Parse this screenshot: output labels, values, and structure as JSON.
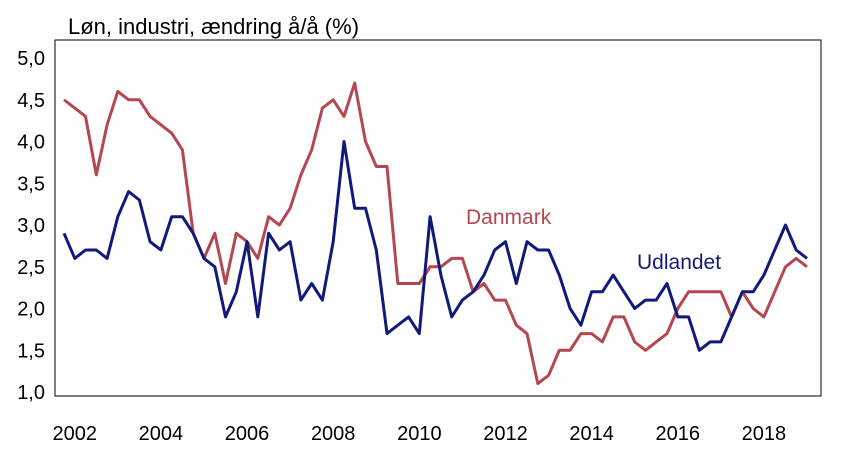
{
  "chart_data": {
    "type": "line",
    "title": "Løn, industri, ændring å/å (%)",
    "xlabel": "",
    "ylabel": "",
    "ylim": [
      1.0,
      5.0
    ],
    "xlim": [
      2001.75,
      2019.0
    ],
    "y_ticks": [
      "1,0",
      "1,5",
      "2,0",
      "2,5",
      "3,0",
      "3,5",
      "4,0",
      "4,5",
      "5,0"
    ],
    "x_ticks": [
      "2002",
      "2004",
      "2006",
      "2008",
      "2010",
      "2012",
      "2014",
      "2016",
      "2018"
    ],
    "grid": false,
    "series": [
      {
        "name": "Danmark",
        "color": "#b5474f",
        "x": [
          2001.75,
          2002.0,
          2002.25,
          2002.5,
          2002.75,
          2003.0,
          2003.25,
          2003.5,
          2003.75,
          2004.0,
          2004.25,
          2004.5,
          2004.75,
          2005.0,
          2005.25,
          2005.5,
          2005.75,
          2006.0,
          2006.25,
          2006.5,
          2006.75,
          2007.0,
          2007.25,
          2007.5,
          2007.75,
          2008.0,
          2008.25,
          2008.5,
          2008.75,
          2009.0,
          2009.25,
          2009.5,
          2009.75,
          2010.0,
          2010.25,
          2010.5,
          2010.75,
          2011.0,
          2011.25,
          2011.5,
          2011.75,
          2012.0,
          2012.25,
          2012.5,
          2012.75,
          2013.0,
          2013.25,
          2013.5,
          2013.75,
          2014.0,
          2014.25,
          2014.5,
          2014.75,
          2015.0,
          2015.25,
          2015.5,
          2015.75,
          2016.0,
          2016.25,
          2016.5,
          2016.75,
          2017.0,
          2017.25,
          2017.5,
          2017.75,
          2018.0,
          2018.25,
          2018.5,
          2018.75,
          2019.0
        ],
        "values": [
          4.5,
          4.4,
          4.3,
          3.6,
          4.2,
          4.6,
          4.5,
          4.5,
          4.3,
          4.2,
          4.1,
          3.9,
          2.9,
          2.6,
          2.9,
          2.3,
          2.9,
          2.8,
          2.6,
          3.1,
          3.0,
          3.2,
          3.6,
          3.9,
          4.4,
          4.5,
          4.3,
          4.7,
          4.0,
          3.7,
          3.7,
          2.3,
          2.3,
          2.3,
          2.5,
          2.5,
          2.6,
          2.6,
          2.2,
          2.3,
          2.1,
          2.1,
          1.8,
          1.7,
          1.1,
          1.2,
          1.5,
          1.5,
          1.7,
          1.7,
          1.6,
          1.9,
          1.9,
          1.6,
          1.5,
          1.6,
          1.7,
          2.0,
          2.2,
          2.2,
          2.2,
          2.2,
          1.9,
          2.2,
          2.0,
          1.9,
          2.2,
          2.5,
          2.6,
          2.5
        ]
      },
      {
        "name": "Udlandet",
        "color": "#101a7a",
        "x": [
          2001.75,
          2002.0,
          2002.25,
          2002.5,
          2002.75,
          2003.0,
          2003.25,
          2003.5,
          2003.75,
          2004.0,
          2004.25,
          2004.5,
          2004.75,
          2005.0,
          2005.25,
          2005.5,
          2005.75,
          2006.0,
          2006.25,
          2006.5,
          2006.75,
          2007.0,
          2007.25,
          2007.5,
          2007.75,
          2008.0,
          2008.25,
          2008.5,
          2008.75,
          2009.0,
          2009.25,
          2009.5,
          2009.75,
          2010.0,
          2010.25,
          2010.5,
          2010.75,
          2011.0,
          2011.25,
          2011.5,
          2011.75,
          2012.0,
          2012.25,
          2012.5,
          2012.75,
          2013.0,
          2013.25,
          2013.5,
          2013.75,
          2014.0,
          2014.25,
          2014.5,
          2014.75,
          2015.0,
          2015.25,
          2015.5,
          2015.75,
          2016.0,
          2016.25,
          2016.5,
          2016.75,
          2017.0,
          2017.25,
          2017.5,
          2017.75,
          2018.0,
          2018.25,
          2018.5,
          2018.75,
          2019.0
        ],
        "values": [
          2.9,
          2.6,
          2.7,
          2.7,
          2.6,
          3.1,
          3.4,
          3.3,
          2.8,
          2.7,
          3.1,
          3.1,
          2.9,
          2.6,
          2.5,
          1.9,
          2.2,
          2.8,
          1.9,
          2.9,
          2.7,
          2.8,
          2.1,
          2.3,
          2.1,
          2.8,
          4.0,
          3.2,
          3.2,
          2.7,
          1.7,
          1.8,
          1.9,
          1.7,
          3.1,
          2.4,
          1.9,
          2.1,
          2.2,
          2.4,
          2.7,
          2.8,
          2.3,
          2.8,
          2.7,
          2.7,
          2.4,
          2.0,
          1.8,
          2.2,
          2.2,
          2.4,
          2.2,
          2.0,
          2.1,
          2.1,
          2.3,
          1.9,
          1.9,
          1.5,
          1.6,
          1.6,
          1.9,
          2.2,
          2.2,
          2.4,
          2.7,
          3.0,
          2.7,
          2.6
        ]
      }
    ],
    "labels": {
      "danmark": "Danmark",
      "udlandet": "Udlandet"
    }
  }
}
